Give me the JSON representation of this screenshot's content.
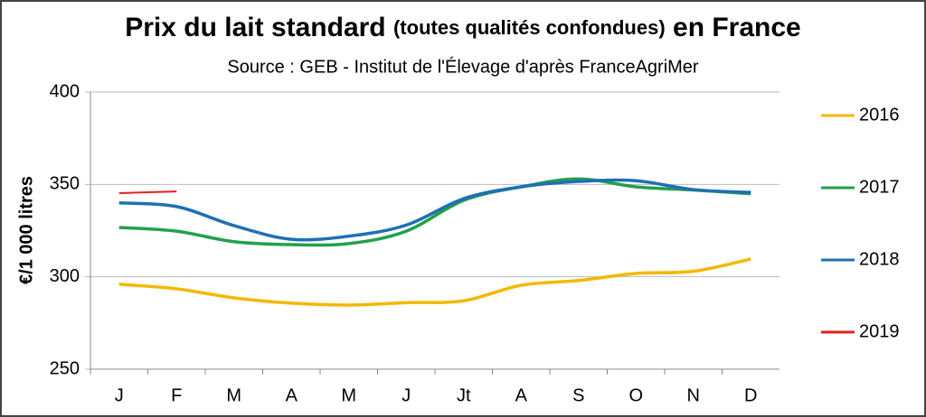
{
  "chart_data": {
    "type": "line",
    "title": [
      "Prix du lait standard",
      "(toutes qualités confondues)",
      "en France"
    ],
    "subtitle": "Source : GEB - Institut de l'Élevage d'après FranceAgriMer",
    "y_label": "€/1 000 litres",
    "categories": [
      "J",
      "F",
      "M",
      "A",
      "M",
      "J",
      "Jt",
      "A",
      "S",
      "O",
      "N",
      "D"
    ],
    "series": [
      {
        "name": "2016",
        "color": "#f5b800",
        "values": [
          296,
          293.5,
          288.6,
          285.7,
          284.7,
          286,
          287,
          295.4,
          298,
          301.8,
          303,
          309.6
        ]
      },
      {
        "name": "2017",
        "color": "#22a04b",
        "values": [
          326.7,
          324.7,
          319,
          317.4,
          318,
          324.7,
          341.4,
          348.7,
          353,
          348.7,
          347,
          345
        ]
      },
      {
        "name": "2018",
        "color": "#1f6fb5",
        "values": [
          340,
          338,
          327.7,
          320.3,
          322,
          328,
          342.3,
          348.7,
          351.6,
          352,
          347.2,
          345.7
        ]
      },
      {
        "name": "2019",
        "color": "#e3201b",
        "values": [
          345.3,
          346.2,
          null,
          null,
          null,
          null,
          null,
          null,
          null,
          null,
          null,
          null
        ]
      }
    ],
    "ylim": [
      250,
      400
    ],
    "yticks": [
      250,
      300,
      350,
      400
    ],
    "grid": true,
    "legend": "right"
  }
}
